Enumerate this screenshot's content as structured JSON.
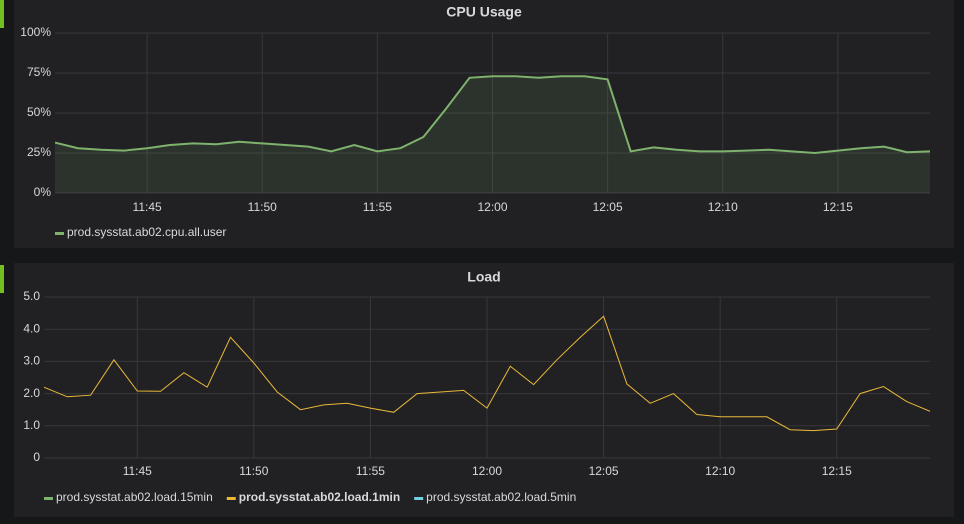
{
  "chart_data": [
    {
      "type": "line",
      "title": "CPU Usage",
      "fill": true,
      "grid": true,
      "x": [
        "11:41",
        "11:42",
        "11:43",
        "11:44",
        "11:45",
        "11:46",
        "11:47",
        "11:48",
        "11:49",
        "11:50",
        "11:51",
        "11:52",
        "11:53",
        "11:54",
        "11:55",
        "11:56",
        "11:57",
        "11:58",
        "11:59",
        "12:00",
        "12:01",
        "12:02",
        "12:03",
        "12:04",
        "12:05",
        "12:06",
        "12:07",
        "12:08",
        "12:09",
        "12:10",
        "12:11",
        "12:12",
        "12:13",
        "12:14",
        "12:15",
        "12:16",
        "12:17",
        "12:18",
        "12:19"
      ],
      "xlim": [
        "11:41",
        "12:19"
      ],
      "xticks": [
        "11:45",
        "11:50",
        "11:55",
        "12:00",
        "12:05",
        "12:10",
        "12:15"
      ],
      "ylim": [
        0,
        100
      ],
      "yticks": [
        {
          "value": 0,
          "label": "0%"
        },
        {
          "value": 25,
          "label": "25%"
        },
        {
          "value": 50,
          "label": "50%"
        },
        {
          "value": 75,
          "label": "75%"
        },
        {
          "value": 100,
          "label": "100%"
        }
      ],
      "series": [
        {
          "name": "prod.sysstat.ab02.cpu.all.user",
          "color": "#7eb26d",
          "visible": true,
          "values": [
            31.5,
            28,
            27,
            26.5,
            28,
            30,
            31,
            30.5,
            32,
            31,
            30,
            29,
            26,
            30,
            26,
            28,
            35,
            53,
            72,
            73,
            73,
            72,
            73,
            73,
            71,
            26,
            28.5,
            27,
            26,
            26,
            26.5,
            27,
            26,
            25,
            26.5,
            28,
            29,
            25.5,
            26
          ]
        }
      ]
    },
    {
      "type": "line",
      "title": "Load",
      "fill": false,
      "grid": true,
      "x": [
        "11:41",
        "11:42",
        "11:43",
        "11:44",
        "11:45",
        "11:46",
        "11:47",
        "11:48",
        "11:49",
        "11:50",
        "11:51",
        "11:52",
        "11:53",
        "11:54",
        "11:55",
        "11:56",
        "11:57",
        "11:58",
        "11:59",
        "12:00",
        "12:01",
        "12:02",
        "12:03",
        "12:04",
        "12:05",
        "12:06",
        "12:07",
        "12:08",
        "12:09",
        "12:10",
        "12:11",
        "12:12",
        "12:13",
        "12:14",
        "12:15",
        "12:16",
        "12:17",
        "12:18",
        "12:19"
      ],
      "xlim": [
        "11:41",
        "12:19"
      ],
      "xticks": [
        "11:45",
        "11:50",
        "11:55",
        "12:00",
        "12:05",
        "12:10",
        "12:15"
      ],
      "ylim": [
        0,
        5
      ],
      "yticks": [
        0,
        {
          "value": 1,
          "label": "1.0"
        },
        {
          "value": 2,
          "label": "2.0"
        },
        {
          "value": 3,
          "label": "3.0"
        },
        {
          "value": 4,
          "label": "4.0"
        },
        {
          "value": 5,
          "label": "5.0"
        }
      ],
      "series": [
        {
          "name": "prod.sysstat.ab02.load.15min",
          "color": "#7eb26d",
          "visible": false
        },
        {
          "name": "prod.sysstat.ab02.load.1min",
          "color": "#eab839",
          "visible": true,
          "values": [
            2.2,
            1.9,
            1.95,
            3.05,
            2.08,
            2.07,
            2.65,
            2.2,
            3.75,
            2.95,
            2.05,
            1.5,
            1.65,
            1.7,
            1.55,
            1.42,
            2.0,
            2.05,
            2.1,
            1.55,
            2.85,
            2.28,
            3.05,
            3.75,
            4.4,
            2.3,
            1.7,
            2.0,
            1.35,
            1.28,
            1.28,
            1.28,
            0.88,
            0.85,
            0.9,
            2.0,
            2.22,
            1.75,
            1.45
          ]
        },
        {
          "name": "prod.sysstat.ab02.load.5min",
          "color": "#6ed0e0",
          "visible": false
        }
      ]
    }
  ]
}
